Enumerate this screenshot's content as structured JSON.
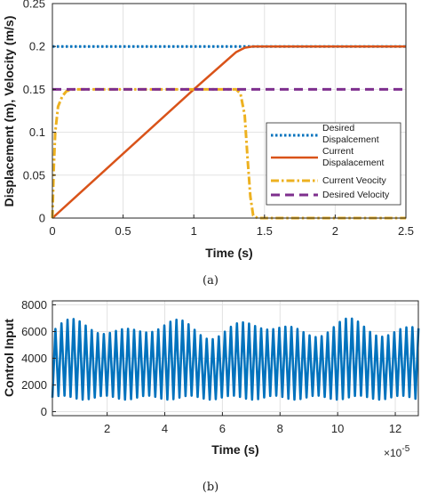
{
  "colors": {
    "desired_displacement": "#0072BD",
    "current_displacement": "#D95319",
    "current_velocity": "#EDB120",
    "desired_velocity": "#7E2F8E",
    "control_input": "#0072BD",
    "grid": "#e2e2e2",
    "axis": "#262626"
  },
  "chart_data": [
    {
      "type": "line",
      "caption": "(a)",
      "xlabel": "Time (s)",
      "ylabel": "Displacement (m), Velocity (m/s)",
      "xlim": [
        0,
        2.5
      ],
      "ylim": [
        0,
        0.25
      ],
      "xticks": [
        0,
        0.5,
        1,
        1.5,
        2,
        2.5
      ],
      "xtick_labels": [
        "0",
        "0.5",
        "1",
        "1.5",
        "2",
        "2.5"
      ],
      "yticks": [
        0,
        0.05,
        0.1,
        0.15,
        0.2,
        0.25
      ],
      "ytick_labels": [
        "0",
        "0.05",
        "0.1",
        "0.15",
        "0.2",
        "0.25"
      ],
      "grid": true,
      "legend_position": "bottom-right",
      "series": [
        {
          "name": "Desired Dispalcement",
          "style": "dotted",
          "color": "#0072BD",
          "x": [
            0,
            2.5
          ],
          "y": [
            0.2,
            0.2
          ]
        },
        {
          "name": "Current Dispalacement",
          "style": "solid",
          "color": "#D95319",
          "x": [
            0,
            0.15,
            1.0,
            1.3,
            1.36,
            1.42,
            2.5
          ],
          "y": [
            0,
            0.0225,
            0.15,
            0.1935,
            0.1985,
            0.2,
            0.2
          ]
        },
        {
          "name": "Current Veocity",
          "style": "dashdot",
          "color": "#EDB120",
          "x": [
            0,
            0.01,
            0.02,
            0.04,
            0.07,
            0.1,
            0.15,
            0.2,
            1.3,
            1.33,
            1.36,
            1.38,
            1.4,
            1.42,
            1.45,
            2.5
          ],
          "y": [
            0,
            0.06,
            0.1,
            0.13,
            0.142,
            0.148,
            0.15,
            0.15,
            0.15,
            0.145,
            0.12,
            0.07,
            0.025,
            0.003,
            0,
            0
          ]
        },
        {
          "name": "Desired Velocity",
          "style": "dashed",
          "color": "#7E2F8E",
          "x": [
            0,
            2.5
          ],
          "y": [
            0.15,
            0.15
          ]
        }
      ]
    },
    {
      "type": "line",
      "caption": "(b)",
      "xlabel": "Time (s)",
      "ylabel": "Control Input",
      "x_multiplier": "×10",
      "x_multiplier_exp": "-5",
      "xlim": [
        0.1,
        12.8
      ],
      "ylim": [
        -300,
        8300
      ],
      "xticks": [
        2,
        4,
        6,
        8,
        10,
        12
      ],
      "xtick_labels": [
        "2",
        "4",
        "6",
        "8",
        "10",
        "12"
      ],
      "yticks": [
        0,
        2000,
        4000,
        6000,
        8000
      ],
      "ytick_labels": [
        "0",
        "2000",
        "4000",
        "6000",
        "8000"
      ],
      "grid": true,
      "signal": {
        "name": "Control Input",
        "color": "#0072BD",
        "oscillation_period": 0.21,
        "min_value": 900,
        "max_value_range": [
          5400,
          7000
        ],
        "x_start": 0.1,
        "x_end": 12.8
      }
    }
  ]
}
